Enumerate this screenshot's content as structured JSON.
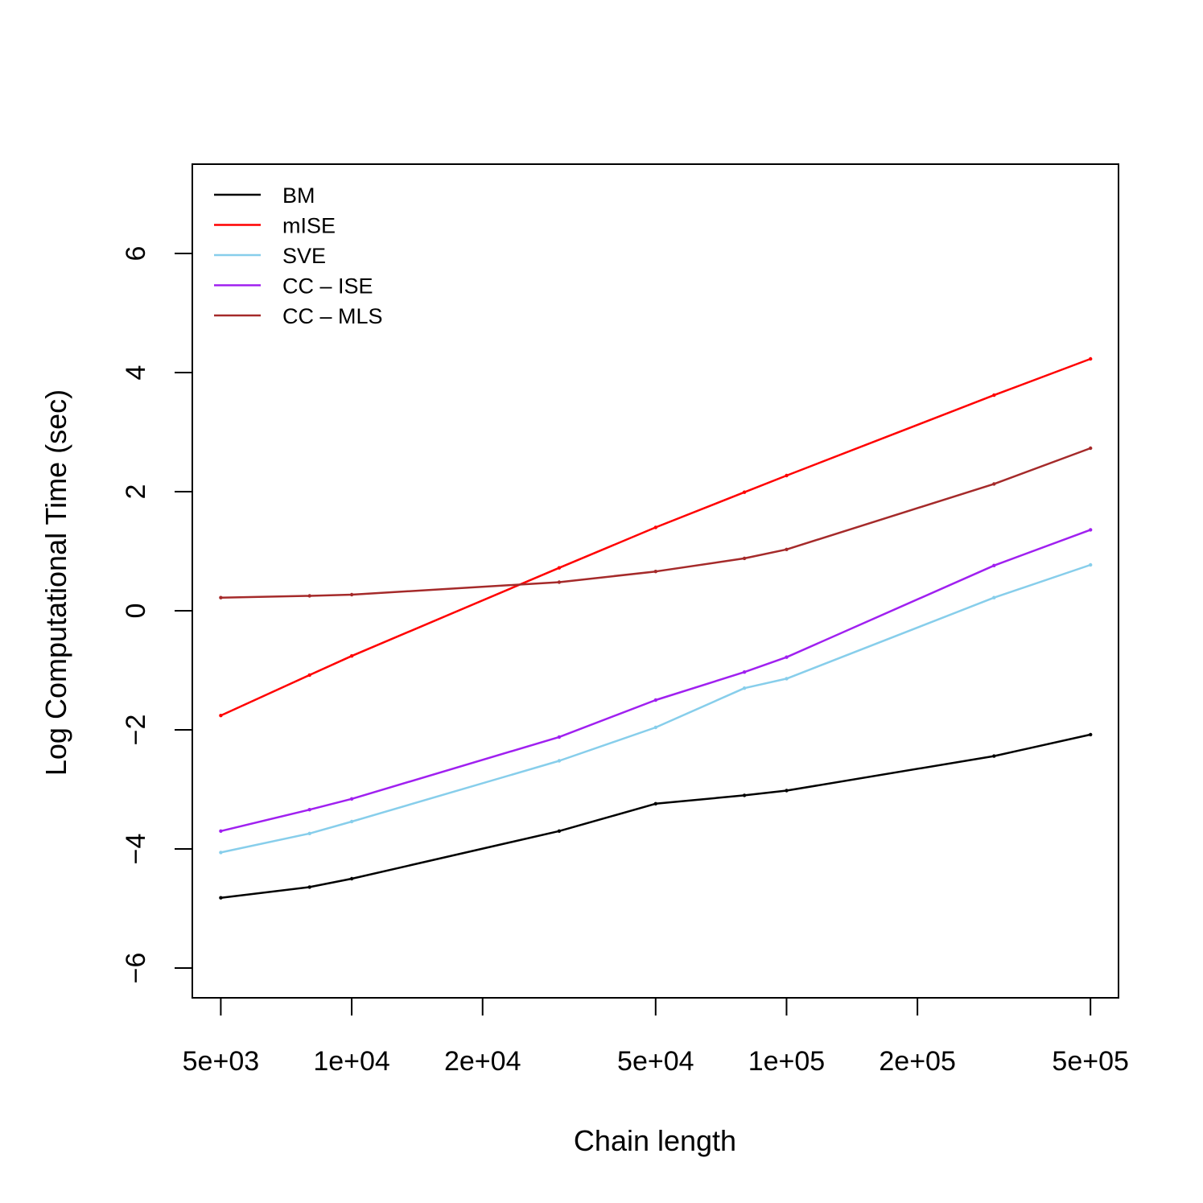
{
  "chart_data": {
    "type": "line",
    "title": "",
    "xlabel": "Chain length",
    "ylabel": "Log Computational Time (sec)",
    "x_scale": "log",
    "xlim": [
      4300,
      580000
    ],
    "ylim": [
      -6.5,
      7.5
    ],
    "x_ticks": [
      5000,
      10000,
      20000,
      50000,
      100000,
      200000,
      500000
    ],
    "x_tick_labels": [
      "5e+03",
      "1e+04",
      "2e+04",
      "5e+04",
      "1e+05",
      "2e+05",
      "5e+05"
    ],
    "y_ticks": [
      -6,
      -4,
      -2,
      0,
      2,
      4,
      6
    ],
    "y_tick_labels": [
      "−6",
      "−4",
      "−2",
      "0",
      "2",
      "4",
      "6"
    ],
    "grid": false,
    "legend_position": "top-left",
    "x": [
      5000,
      8000,
      10000,
      30000,
      50000,
      80000,
      100000,
      300000,
      500000
    ],
    "series": [
      {
        "name": "BM",
        "color": "#000000",
        "values": [
          -4.82,
          -4.64,
          -4.5,
          -3.7,
          -3.24,
          -3.1,
          -3.02,
          -2.44,
          -2.08
        ]
      },
      {
        "name": "mISE",
        "color": "#ff0000",
        "values": [
          -1.76,
          -1.08,
          -0.76,
          0.72,
          1.4,
          1.99,
          2.27,
          3.62,
          4.23
        ]
      },
      {
        "name": "SVE",
        "color": "#87ceeb",
        "values": [
          -4.06,
          -3.74,
          -3.54,
          -2.52,
          -1.96,
          -1.3,
          -1.14,
          0.22,
          0.77
        ]
      },
      {
        "name": "CC – ISE",
        "color": "#a020f0",
        "values": [
          -3.7,
          -3.34,
          -3.16,
          -2.12,
          -1.5,
          -1.03,
          -0.78,
          0.76,
          1.36
        ]
      },
      {
        "name": "CC – MLS",
        "color": "#a52a2a",
        "values": [
          0.22,
          0.25,
          0.27,
          0.48,
          0.66,
          0.88,
          1.03,
          2.13,
          2.73
        ]
      }
    ]
  }
}
